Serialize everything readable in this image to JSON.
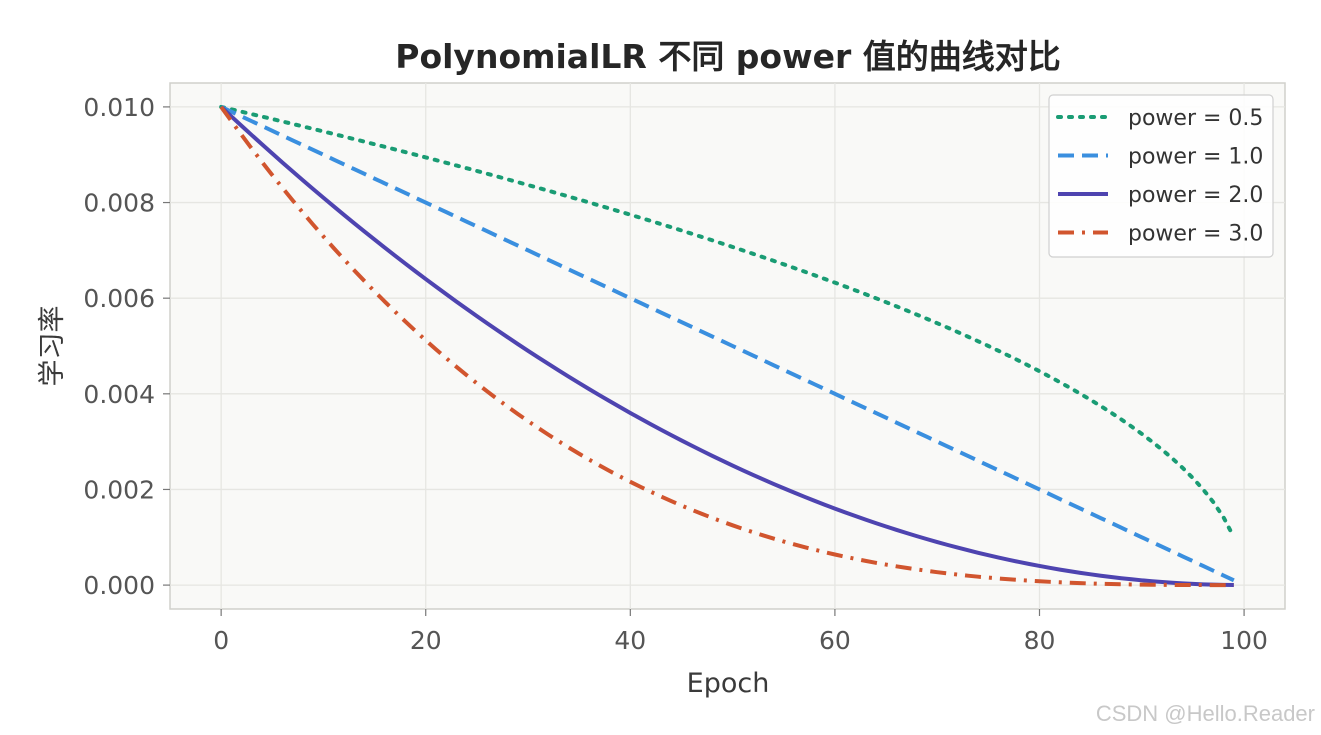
{
  "chart_data": {
    "type": "line",
    "title": "PolynomialLR 不同 power 值的曲线对比",
    "xlabel": "Epoch",
    "ylabel": "学习率",
    "xlim": [
      -5,
      104
    ],
    "ylim": [
      -0.0005,
      0.0105
    ],
    "xticks": [
      0,
      20,
      40,
      60,
      80,
      100
    ],
    "yticks": [
      0.0,
      0.002,
      0.004,
      0.006,
      0.008,
      0.01
    ],
    "ytick_labels": [
      "0.000",
      "0.002",
      "0.004",
      "0.006",
      "0.008",
      "0.010"
    ],
    "grid": true,
    "legend_position": "top-right",
    "base_lr": 0.01,
    "total_iters": 100,
    "x_range": [
      0,
      99
    ],
    "series": [
      {
        "name": "power = 0.5",
        "power": 0.5,
        "color": "#1a9c74",
        "style": "dotted"
      },
      {
        "name": "power = 1.0",
        "power": 1.0,
        "color": "#3a8fdf",
        "style": "dashed"
      },
      {
        "name": "power = 2.0",
        "power": 2.0,
        "color": "#4e44b0",
        "style": "solid"
      },
      {
        "name": "power = 3.0",
        "power": 3.0,
        "color": "#d1552e",
        "style": "dashdot"
      }
    ]
  },
  "watermark": "CSDN @Hello.Reader"
}
